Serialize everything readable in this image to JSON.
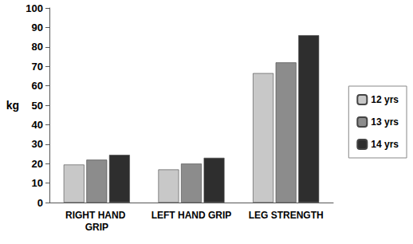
{
  "chart_data": {
    "type": "bar",
    "y_label": "kg",
    "categories": [
      "RIGHT HAND GRIP",
      "LEFT HAND GRIP",
      "LEG STRENGTH"
    ],
    "series": [
      {
        "name": "12 yrs",
        "color": "#c8c8c8",
        "values": [
          19.5,
          17,
          66.5
        ]
      },
      {
        "name": "13 yrs",
        "color": "#8c8c8c",
        "values": [
          22,
          20,
          72
        ]
      },
      {
        "name": "14 yrs",
        "color": "#2e2e2e",
        "values": [
          24.5,
          23,
          86
        ]
      }
    ],
    "ylim": [
      0,
      100
    ],
    "yticks": [
      0,
      10,
      20,
      30,
      40,
      50,
      60,
      70,
      80,
      90,
      100
    ],
    "grid": false,
    "legend": "right"
  }
}
